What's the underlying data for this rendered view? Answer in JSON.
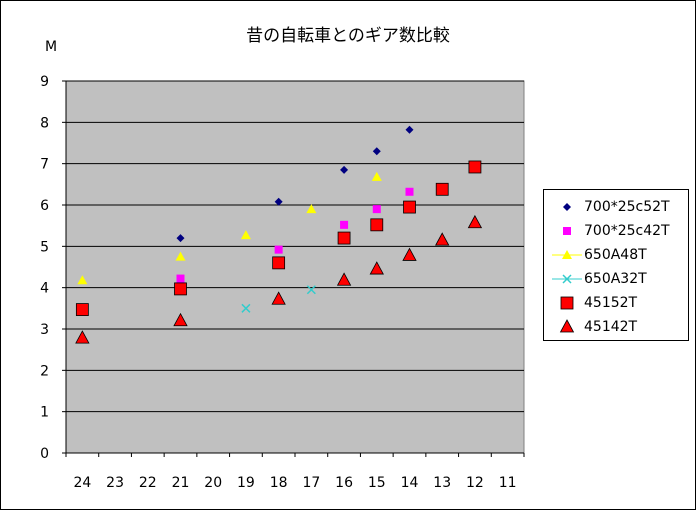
{
  "chart_data": {
    "type": "scatter",
    "title": "昔の自転車とのギア数比較",
    "ylabel": "M",
    "xlabel": "",
    "x_reversed": true,
    "xlim": [
      24,
      11
    ],
    "ylim": [
      0,
      9
    ],
    "x_ticks": [
      "24",
      "23",
      "22",
      "21",
      "20",
      "19",
      "18",
      "17",
      "16",
      "15",
      "14",
      "13",
      "12",
      "11"
    ],
    "y_ticks": [
      "0",
      "1",
      "2",
      "3",
      "4",
      "5",
      "6",
      "7",
      "8",
      "9"
    ],
    "grid": true,
    "legend_position": "right",
    "series": [
      {
        "name": "700*25c52T",
        "color": "#000080",
        "marker": "diamond",
        "points": [
          [
            21,
            5.2
          ],
          [
            18,
            6.08
          ],
          [
            16,
            6.85
          ],
          [
            15,
            7.3
          ],
          [
            14,
            7.82
          ]
        ]
      },
      {
        "name": "700*25c42T",
        "color": "#ff00ff",
        "marker": "square",
        "points": [
          [
            21,
            4.22
          ],
          [
            18,
            4.92
          ],
          [
            16,
            5.52
          ],
          [
            15,
            5.9
          ],
          [
            14,
            6.32
          ]
        ]
      },
      {
        "name": "650A48T",
        "color": "#ffff00",
        "marker": "triangle",
        "points": [
          [
            24,
            4.18
          ],
          [
            21,
            4.75
          ],
          [
            19,
            5.27
          ],
          [
            17,
            5.9
          ],
          [
            15,
            6.68
          ]
        ]
      },
      {
        "name": "650A32T",
        "color": "#33cccc",
        "marker": "x",
        "points": [
          [
            19,
            3.5
          ],
          [
            17,
            3.95
          ]
        ]
      },
      {
        "name": "45152T",
        "color": "#ff0000",
        "marker": "bigsquare",
        "points": [
          [
            24,
            3.47
          ],
          [
            21,
            3.97
          ],
          [
            18,
            4.6
          ],
          [
            16,
            5.2
          ],
          [
            15,
            5.52
          ],
          [
            14,
            5.95
          ],
          [
            13,
            6.38
          ],
          [
            12,
            6.92
          ]
        ]
      },
      {
        "name": "45142T",
        "color": "#ff0000",
        "marker": "bigtriangle",
        "points": [
          [
            24,
            2.78
          ],
          [
            21,
            3.2
          ],
          [
            18,
            3.72
          ],
          [
            16,
            4.18
          ],
          [
            15,
            4.45
          ],
          [
            14,
            4.78
          ],
          [
            13,
            5.15
          ],
          [
            12,
            5.57
          ]
        ]
      }
    ]
  }
}
